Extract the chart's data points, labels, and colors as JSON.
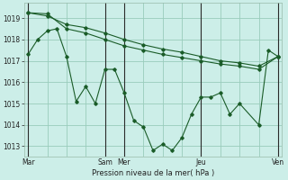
{
  "background_color": "#cceee8",
  "grid_color": "#99ccbb",
  "line_color": "#1a5c28",
  "marker_color": "#1a5c28",
  "xlabel": "Pression niveau de la mer( hPa )",
  "ylim": [
    1012.5,
    1019.7
  ],
  "yticks": [
    1013,
    1014,
    1015,
    1016,
    1017,
    1018,
    1019
  ],
  "xtick_labels": [
    "Mar",
    "",
    "",
    "",
    "Sam",
    "Mer",
    "",
    "",
    "",
    "Jeu",
    "",
    "",
    "",
    "Ven"
  ],
  "xtick_positions": [
    0,
    1,
    2,
    3,
    4,
    5,
    6,
    7,
    8,
    9,
    10,
    11,
    12,
    13
  ],
  "vline_positions": [
    0,
    4,
    5,
    9,
    13
  ],
  "series1_x": [
    0,
    0.5,
    1.0,
    1.5,
    2.0,
    2.5,
    3.0,
    3.5,
    4.0,
    4.5,
    5.0,
    5.5,
    6.0,
    6.5,
    7.0,
    7.5,
    8.0,
    8.5,
    9.0,
    9.5,
    10.0,
    10.5,
    11.0,
    12.0,
    12.5,
    13.0
  ],
  "series1_y": [
    1017.3,
    1018.0,
    1018.4,
    1018.5,
    1017.2,
    1015.1,
    1015.8,
    1015.0,
    1016.6,
    1016.6,
    1015.5,
    1014.2,
    1013.9,
    1012.8,
    1013.1,
    1012.8,
    1013.4,
    1014.5,
    1015.3,
    1015.3,
    1015.5,
    1014.5,
    1015.0,
    1014.0,
    1017.5,
    1017.2
  ],
  "series2_x": [
    0,
    1,
    2,
    3,
    4,
    5,
    6,
    7,
    8,
    9,
    10,
    11,
    12,
    13
  ],
  "series2_y": [
    1019.25,
    1019.2,
    1018.5,
    1018.3,
    1018.0,
    1017.7,
    1017.5,
    1017.3,
    1017.15,
    1017.0,
    1016.85,
    1016.75,
    1016.6,
    1017.2
  ],
  "series3_x": [
    0,
    1,
    2,
    3,
    4,
    5,
    6,
    7,
    8,
    9,
    10,
    11,
    12,
    13
  ],
  "series3_y": [
    1019.25,
    1019.1,
    1018.7,
    1018.55,
    1018.3,
    1018.0,
    1017.75,
    1017.55,
    1017.4,
    1017.2,
    1017.0,
    1016.9,
    1016.75,
    1017.2
  ]
}
